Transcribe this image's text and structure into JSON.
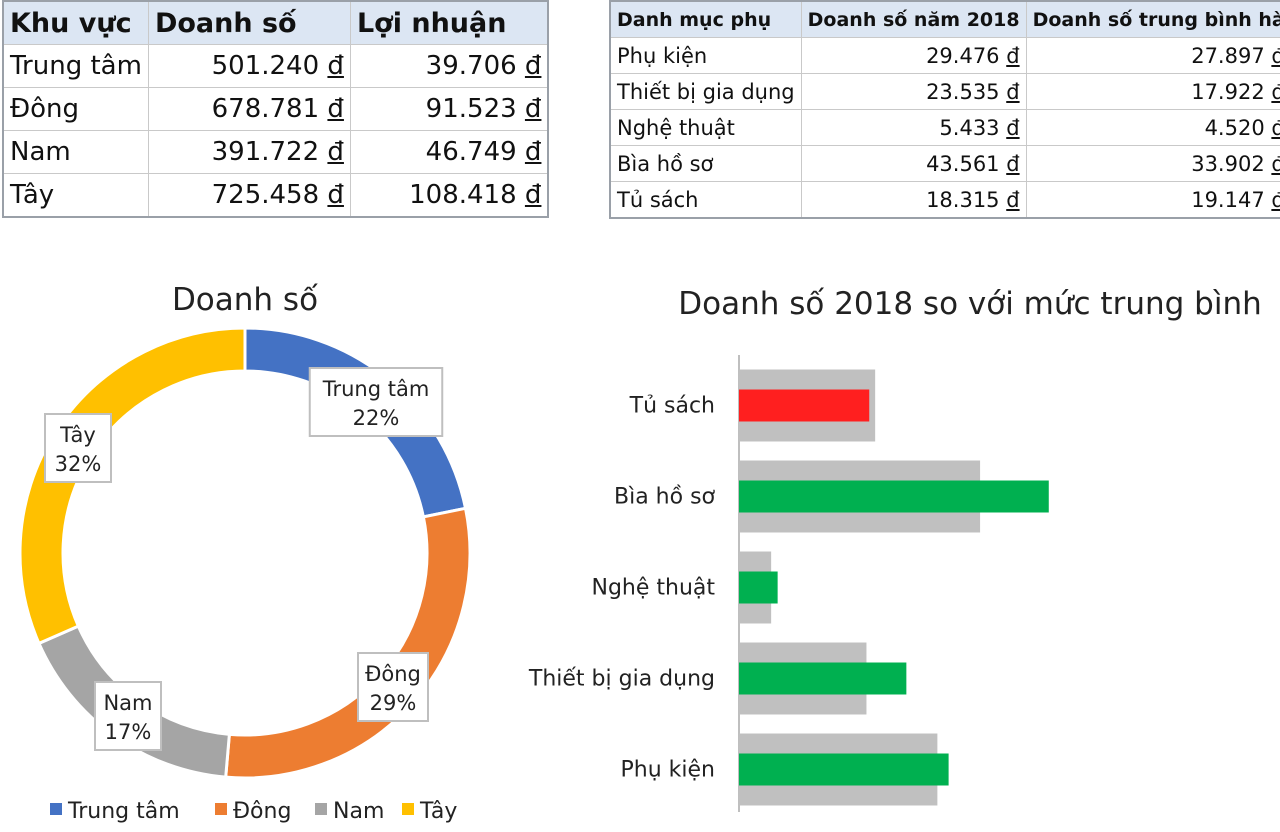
{
  "region_table": {
    "headers": [
      "Khu vực",
      "Doanh số",
      "Lợi nhuận"
    ],
    "currency": "đ",
    "rows": [
      {
        "region": "Trung tâm",
        "sales": "501.240",
        "profit": "39.706"
      },
      {
        "region": "Đông",
        "sales": "678.781",
        "profit": "91.523"
      },
      {
        "region": "Nam",
        "sales": "391.722",
        "profit": "46.749"
      },
      {
        "region": "Tây",
        "sales": "725.458",
        "profit": "108.418"
      }
    ]
  },
  "subcat_table": {
    "headers": [
      "Danh mục phụ",
      "Doanh số năm 2018",
      "Doanh số trung bình hà"
    ],
    "currency": "đ",
    "rows": [
      {
        "name": "Phụ kiện",
        "sales2018": "29.476",
        "avg": "27.897"
      },
      {
        "name": "Thiết bị gia dụng",
        "sales2018": "23.535",
        "avg": "17.922"
      },
      {
        "name": "Nghệ thuật",
        "sales2018": "5.433",
        "avg": "4.520"
      },
      {
        "name": "Bìa hồ sơ",
        "sales2018": "43.561",
        "avg": "33.902"
      },
      {
        "name": "Tủ sách",
        "sales2018": "18.315",
        "avg": "19.147"
      }
    ]
  },
  "chart_data": [
    {
      "type": "pie",
      "variant": "doughnut",
      "title": "Doanh số",
      "categories": [
        "Trung tâm",
        "Đông",
        "Nam",
        "Tây"
      ],
      "values": [
        501240,
        678781,
        391722,
        725458
      ],
      "labels": [
        "22%",
        "29%",
        "17%",
        "32%"
      ],
      "colors": [
        "#4472c4",
        "#ed7d31",
        "#a5a5a5",
        "#ffc000"
      ],
      "legend": "bottom"
    },
    {
      "type": "bar",
      "orientation": "horizontal",
      "title": "Doanh số 2018 so với mức trung bình",
      "categories": [
        "Tủ sách",
        "Bìa hồ sơ",
        "Nghệ thuật",
        "Thiết bị gia dụng",
        "Phụ kiện"
      ],
      "series": [
        {
          "values": [
            19147,
            33902,
            4520,
            17922,
            27897
          ],
          "color": "#c0c0c0"
        },
        {
          "values": [
            18315,
            43561,
            5433,
            23535,
            29476
          ],
          "colors": [
            "#ff1f1f",
            "#00b050",
            "#00b050",
            "#00b050",
            "#00b050"
          ]
        }
      ],
      "xlim": [
        0,
        45000
      ],
      "legend": "none",
      "grid": false
    }
  ]
}
